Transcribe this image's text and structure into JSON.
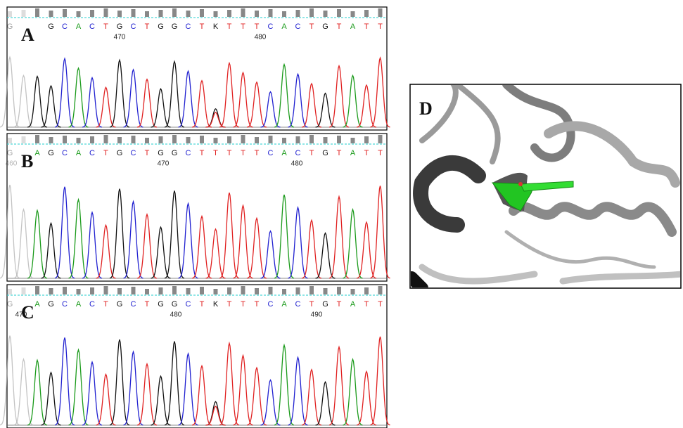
{
  "panels": [
    {
      "label": "A",
      "bases": [
        "G",
        "G",
        "C",
        "A",
        "C",
        "T",
        "G",
        "C",
        "T",
        "G",
        "G",
        "C",
        "T",
        "K",
        "T",
        "T",
        "T",
        "C",
        "A",
        "C",
        "T",
        "G",
        "T",
        "A",
        "T",
        "T"
      ],
      "positions": [
        "470",
        "480"
      ]
    },
    {
      "label": "B",
      "bases": [
        "G",
        "A",
        "G",
        "C",
        "A",
        "C",
        "T",
        "G",
        "C",
        "T",
        "G",
        "G",
        "C",
        "T",
        "T",
        "T",
        "T",
        "T",
        "C",
        "A",
        "C",
        "T",
        "G",
        "T",
        "A",
        "T",
        "T"
      ],
      "positions": [
        "460",
        "470",
        "480"
      ]
    },
    {
      "label": "C",
      "bases": [
        "G",
        "A",
        "G",
        "C",
        "A",
        "C",
        "T",
        "G",
        "C",
        "T",
        "G",
        "G",
        "C",
        "T",
        "K",
        "T",
        "T",
        "T",
        "C",
        "A",
        "C",
        "T",
        "G",
        "T",
        "A",
        "T",
        "T"
      ],
      "positions": [
        "470",
        "480",
        "490"
      ]
    }
  ],
  "panel_d": {
    "label": "D"
  }
}
